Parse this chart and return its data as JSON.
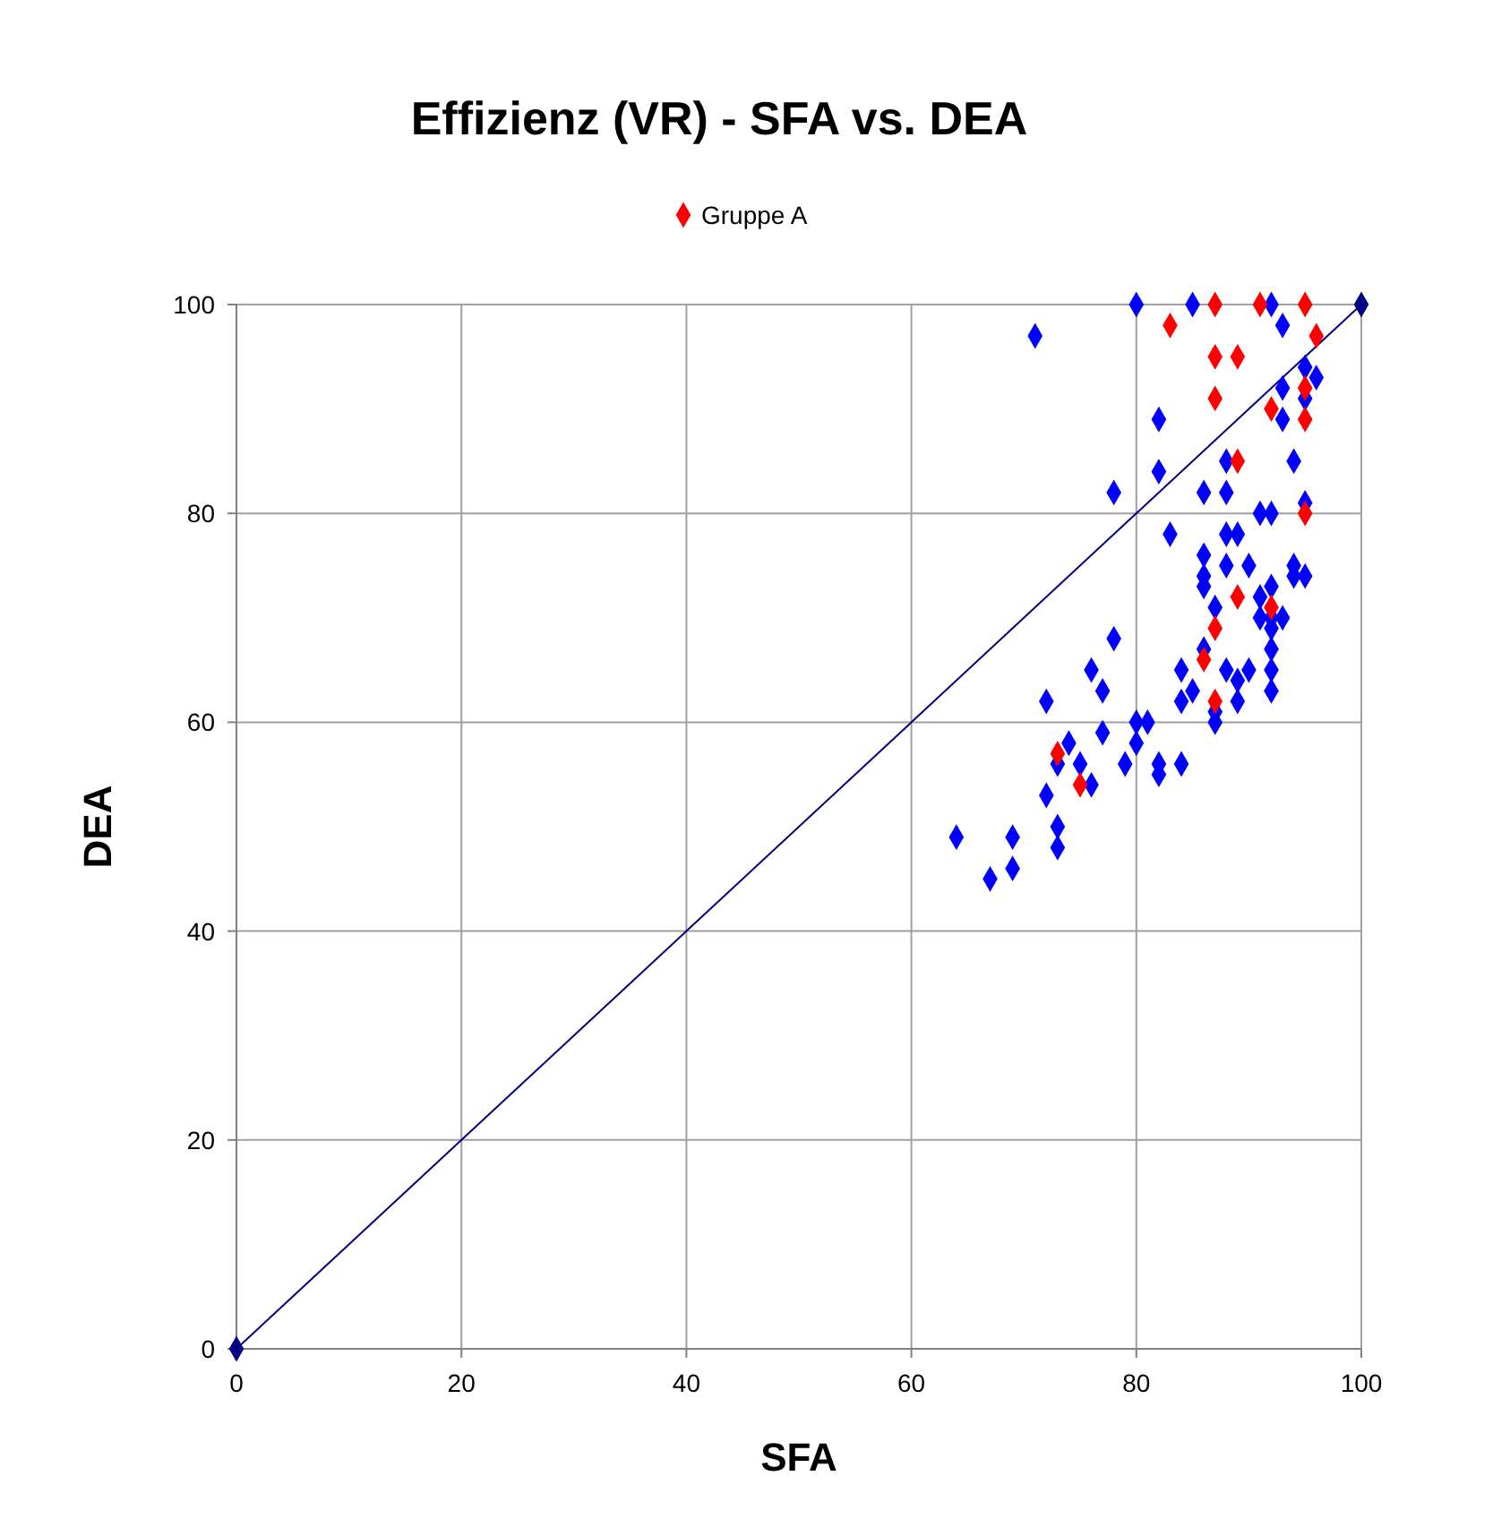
{
  "chart_data": {
    "type": "scatter",
    "title": "Effizienz (VR) - SFA vs. DEA",
    "xlabel": "SFA",
    "ylabel": "DEA",
    "xlim": [
      0,
      100
    ],
    "xticks": [
      0,
      20,
      40,
      60,
      80,
      100
    ],
    "ylim": [
      0,
      100
    ],
    "yticks": [
      0,
      20,
      40,
      60,
      80,
      100
    ],
    "grid": true,
    "legend": "top",
    "marker": "diamond",
    "series": [
      {
        "type": "line",
        "color": "#000080",
        "x": [
          0,
          100
        ],
        "values": [
          0,
          100
        ]
      },
      {
        "color": "#0000ff",
        "x": [
          80,
          85,
          92,
          93,
          82,
          82,
          95,
          96,
          93,
          95,
          93,
          88,
          94,
          86,
          88,
          91,
          92,
          95,
          83,
          88,
          89,
          86,
          88,
          90,
          86,
          86,
          94,
          94,
          95,
          87,
          92,
          91,
          91,
          93,
          92,
          92,
          86,
          92,
          84,
          88,
          90,
          89,
          92,
          85,
          84,
          89,
          92,
          87,
          87,
          80,
          81,
          80,
          82,
          82,
          84,
          78,
          76,
          77,
          72,
          77,
          74,
          73,
          75,
          79,
          76,
          72,
          73,
          73,
          64,
          69,
          69,
          67,
          71,
          78
        ],
        "values": [
          100,
          100,
          100,
          98,
          89,
          84,
          94,
          93,
          92,
          91,
          89,
          85,
          85,
          82,
          82,
          80,
          80,
          81,
          78,
          78,
          78,
          76,
          75,
          75,
          74,
          73,
          75,
          74,
          74,
          71,
          73,
          72,
          70,
          70,
          70,
          69,
          67,
          67,
          65,
          65,
          65,
          64,
          65,
          63,
          62,
          62,
          63,
          61,
          60,
          60,
          60,
          58,
          56,
          55,
          56,
          68,
          65,
          63,
          62,
          59,
          58,
          56,
          56,
          56,
          54,
          53,
          50,
          48,
          49,
          49,
          46,
          45,
          97,
          82
        ]
      },
      {
        "name": "Gruppe A",
        "color": "#ff0000",
        "x": [
          83,
          87,
          91,
          95,
          96,
          87,
          89,
          87,
          95,
          92,
          95,
          89,
          95,
          89,
          92,
          87,
          86,
          87,
          73,
          75
        ],
        "values": [
          98,
          100,
          100,
          100,
          97,
          95,
          95,
          91,
          92,
          90,
          89,
          85,
          80,
          72,
          71,
          69,
          66,
          62,
          57,
          54
        ]
      }
    ]
  }
}
